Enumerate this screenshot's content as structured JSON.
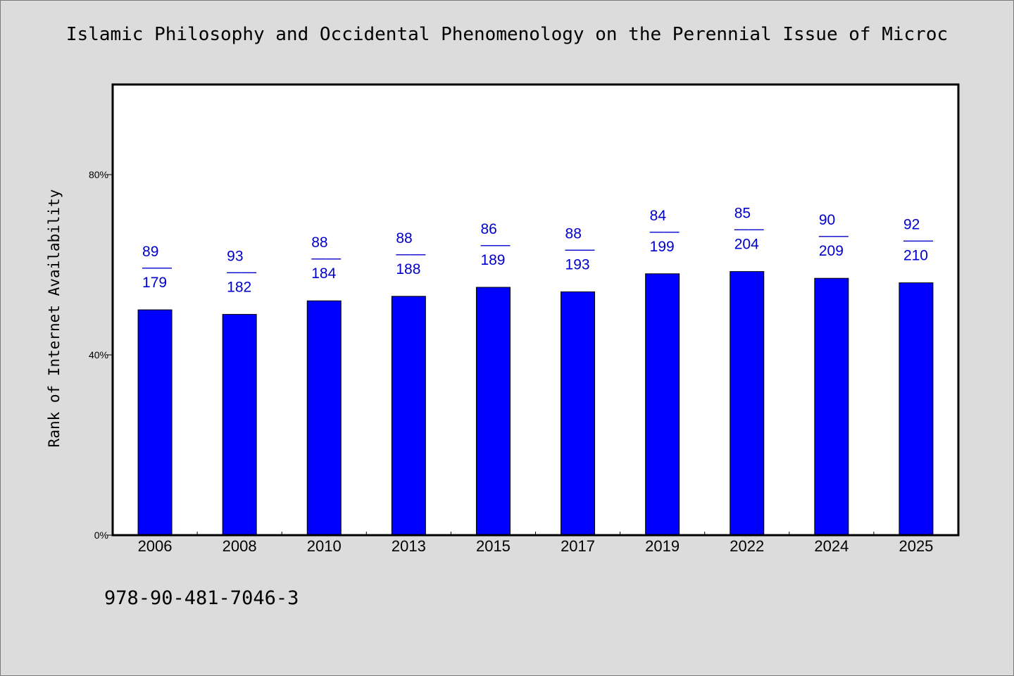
{
  "title": "Islamic Philosophy and Occidental Phenomenology on the Perennial Issue of Microc",
  "isbn": "978-90-481-7046-3",
  "colors": {
    "background": "#dcdcdc",
    "plot_background": "#ffffff",
    "bar": "#0000ff",
    "data_label": "#0000cc"
  },
  "chart_data": {
    "type": "bar",
    "title": "Islamic Philosophy and Occidental Phenomenology on the Perennial Issue of Microc",
    "xlabel": "",
    "ylabel": "Rank of Internet Availability",
    "ylim": [
      0,
      100
    ],
    "yticks": [
      0,
      40,
      80
    ],
    "ytick_labels": [
      "0%",
      "40%",
      "80%"
    ],
    "grid": false,
    "categories": [
      "2006",
      "2008",
      "2010",
      "2013",
      "2015",
      "2017",
      "2019",
      "2022",
      "2024",
      "2025"
    ],
    "values": [
      50,
      49,
      52,
      53,
      55,
      54,
      58,
      58.5,
      57,
      56
    ],
    "labels": [
      {
        "rank": "89",
        "total": "179"
      },
      {
        "rank": "93",
        "total": "182"
      },
      {
        "rank": "88",
        "total": "184"
      },
      {
        "rank": "88",
        "total": "188"
      },
      {
        "rank": "86",
        "total": "189"
      },
      {
        "rank": "88",
        "total": "193"
      },
      {
        "rank": "84",
        "total": "199"
      },
      {
        "rank": "85",
        "total": "204"
      },
      {
        "rank": "90",
        "total": "209"
      },
      {
        "rank": "92",
        "total": "210"
      }
    ],
    "label_separator": "——"
  }
}
